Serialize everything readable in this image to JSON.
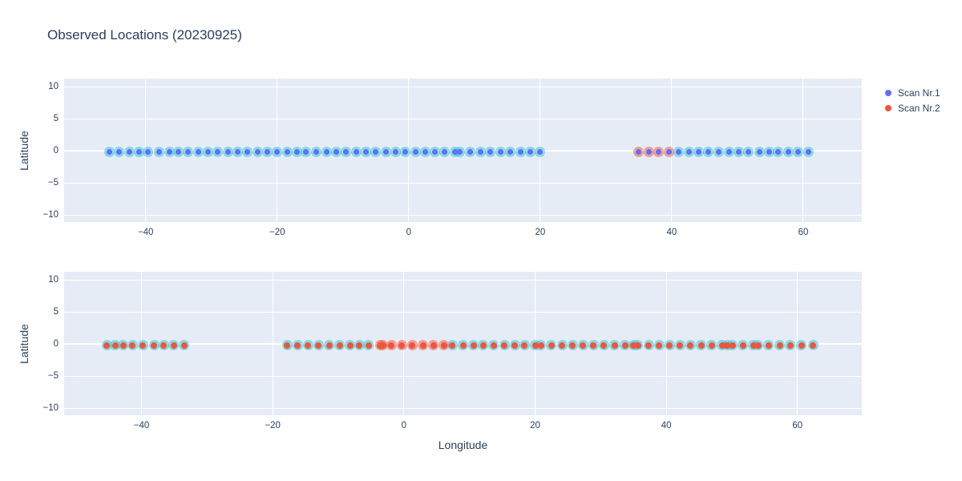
{
  "title": "Observed Locations (20230925)",
  "colors": {
    "page_bg": "#ffffff",
    "plot_bg": "#E5ECF6",
    "grid": "#ffffff",
    "text": "#2a3f5f",
    "scan1_dot": "#636EFA",
    "scan2_dot": "#EF553B",
    "halo_teal": "rgba(23,190,207,0.45)",
    "halo_red": "rgba(239,85,59,0.5)"
  },
  "legend": {
    "position": "top-right",
    "items": [
      {
        "label": "Scan Nr.1",
        "color": "#636EFA"
      },
      {
        "label": "Scan Nr.2",
        "color": "#EF553B"
      }
    ]
  },
  "chart_data": [
    {
      "type": "scatter",
      "title": "",
      "xlabel": "",
      "ylabel": "Latitude",
      "xlim": [
        -52.4,
        68.9
      ],
      "ylim": [
        -11.1,
        11.25
      ],
      "grid": true,
      "xticks": [
        -40,
        -20,
        0,
        20,
        40,
        60
      ],
      "xtick_labels": [
        "−40",
        "−20",
        "0",
        "20",
        "40",
        "60"
      ],
      "yticks": [
        -10,
        -5,
        0,
        5,
        10
      ],
      "ytick_labels": [
        "−10",
        "−5",
        "0",
        "5",
        "10"
      ],
      "series": [
        {
          "name": "halo-red",
          "role": "halo",
          "color_key": "halo_red",
          "size": 13,
          "y_const": -0.2,
          "x": [
            35.0,
            36.5,
            38.0,
            39.6
          ]
        },
        {
          "name": "halo-teal",
          "role": "halo",
          "color_key": "halo_teal",
          "size": 13,
          "y_const": -0.2,
          "x": [
            -45.5,
            -44.1,
            -42.5,
            -41.0,
            -39.6,
            -38.0,
            -36.4,
            -35.0,
            -33.6,
            -32.0,
            -30.5,
            -29.1,
            -27.5,
            -26.0,
            -24.6,
            -23.0,
            -21.5,
            -20.0,
            -18.4,
            -17.0,
            -15.6,
            -14.0,
            -12.5,
            -11.0,
            -9.5,
            -8.0,
            -6.5,
            -5.0,
            -3.5,
            -2.0,
            -0.5,
            1.0,
            2.5,
            4.0,
            5.5,
            7.0,
            7.8,
            9.4,
            10.9,
            12.4,
            14.0,
            15.5,
            17.0,
            18.5,
            20.0,
            41.1,
            42.6,
            44.1,
            45.5,
            47.2,
            48.7,
            50.2,
            51.6,
            53.3,
            54.8,
            56.2,
            57.7,
            59.2,
            60.8
          ]
        },
        {
          "name": "Scan Nr.1",
          "role": "dot",
          "color_key": "scan1_dot",
          "size": 7,
          "y_const": -0.2,
          "x": [
            -45.5,
            -44.1,
            -42.5,
            -41.0,
            -39.6,
            -38.0,
            -36.4,
            -35.0,
            -33.6,
            -32.0,
            -30.5,
            -29.1,
            -27.5,
            -26.0,
            -24.6,
            -23.0,
            -21.5,
            -20.0,
            -18.4,
            -17.0,
            -15.6,
            -14.0,
            -12.5,
            -11.0,
            -9.5,
            -8.0,
            -6.5,
            -5.0,
            -3.5,
            -2.0,
            -0.5,
            1.0,
            2.5,
            4.0,
            5.5,
            7.0,
            7.8,
            9.4,
            10.9,
            12.4,
            14.0,
            15.5,
            17.0,
            18.5,
            20.0,
            35.0,
            36.5,
            38.0,
            39.6,
            41.1,
            42.6,
            44.1,
            45.5,
            47.2,
            48.7,
            50.2,
            51.6,
            53.3,
            54.8,
            56.2,
            57.7,
            59.2,
            60.8
          ]
        }
      ]
    },
    {
      "type": "scatter",
      "title": "",
      "xlabel": "Longitude",
      "ylabel": "Latitude",
      "xlim": [
        -51.8,
        69.8
      ],
      "ylim": [
        -11.1,
        11.25
      ],
      "grid": true,
      "xticks": [
        -40,
        -20,
        0,
        20,
        40,
        60
      ],
      "xtick_labels": [
        "−40",
        "−20",
        "0",
        "20",
        "40",
        "60"
      ],
      "yticks": [
        -10,
        -5,
        0,
        5,
        10
      ],
      "ytick_labels": [
        "−10",
        "−5",
        "0",
        "5",
        "10"
      ],
      "series": [
        {
          "name": "halo-red",
          "role": "halo",
          "color_key": "halo_red",
          "size": 13,
          "y_const": -0.2,
          "x": [
            -3.6,
            -3.2,
            -1.9,
            -0.3,
            1.3,
            2.9,
            4.5,
            6.1
          ]
        },
        {
          "name": "halo-teal",
          "role": "halo",
          "color_key": "halo_teal",
          "size": 13,
          "y_const": -0.2,
          "x": [
            -45.3,
            -44.0,
            -42.8,
            -41.4,
            -39.8,
            -38.1,
            -36.6,
            -35.1,
            -33.5,
            -17.8,
            -16.2,
            -14.6,
            -13.0,
            -11.4,
            -9.8,
            -8.2,
            -6.8,
            -5.4,
            7.4,
            9.0,
            10.6,
            12.1,
            13.7,
            15.3,
            16.9,
            18.4,
            20.0,
            20.9,
            22.5,
            24.1,
            25.7,
            27.3,
            28.9,
            30.5,
            32.1,
            33.7,
            35.0,
            35.7,
            37.3,
            38.9,
            40.5,
            42.1,
            43.7,
            45.3,
            46.9,
            48.5,
            49.3,
            50.1,
            51.7,
            53.3,
            54.0,
            55.6,
            57.3,
            58.9,
            60.6,
            62.4
          ]
        },
        {
          "name": "Scan Nr.2",
          "role": "dot",
          "color_key": "scan2_dot",
          "size": 8,
          "y_const": -0.2,
          "x": [
            -45.3,
            -44.0,
            -42.8,
            -41.4,
            -39.8,
            -38.1,
            -36.6,
            -35.1,
            -33.5,
            -17.8,
            -16.2,
            -14.6,
            -13.0,
            -11.4,
            -9.8,
            -8.2,
            -6.8,
            -5.4,
            -3.6,
            -3.2,
            -1.9,
            -0.3,
            1.3,
            2.9,
            4.5,
            6.1,
            7.4,
            9.0,
            10.6,
            12.1,
            13.7,
            15.3,
            16.9,
            18.4,
            20.0,
            20.9,
            22.5,
            24.1,
            25.7,
            27.3,
            28.9,
            30.5,
            32.1,
            33.7,
            35.0,
            35.7,
            37.3,
            38.9,
            40.5,
            42.1,
            43.7,
            45.3,
            46.9,
            48.5,
            49.3,
            50.1,
            51.7,
            53.3,
            54.0,
            55.6,
            57.3,
            58.9,
            60.6,
            62.4
          ]
        }
      ]
    }
  ]
}
